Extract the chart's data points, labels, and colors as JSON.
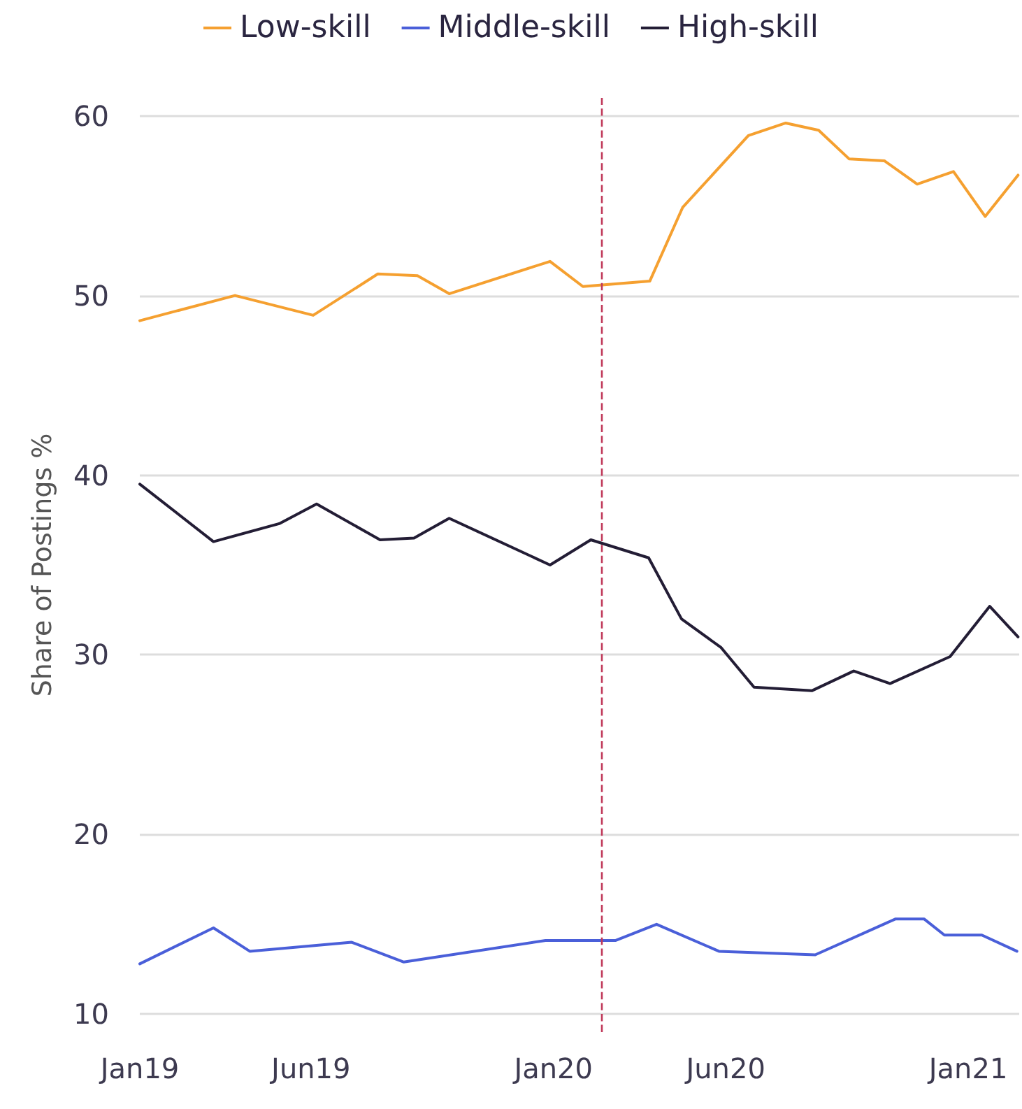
{
  "chart_data": {
    "type": "line",
    "ylabel": "Share of Postings %",
    "xlim": [
      "2019-01-01",
      "2021-02-15"
    ],
    "xticks": [
      {
        "value": "2019-01-01",
        "label": "Jan19"
      },
      {
        "value": "2019-06-01",
        "label": "Jun19"
      },
      {
        "value": "2020-01-01",
        "label": "Jan20"
      },
      {
        "value": "2020-06-01",
        "label": "Jun20"
      },
      {
        "value": "2021-01-01",
        "label": "Jan21"
      }
    ],
    "ylim": [
      9,
      61
    ],
    "yticks": [
      10,
      20,
      30,
      40,
      50,
      60
    ],
    "grid": "y",
    "legend": "top",
    "marker": "none",
    "line_style": "solid",
    "ref_lines": [
      {
        "axis": "x",
        "value": "2020-02-12",
        "color": "#c0395a",
        "line_style": "dashed"
      }
    ],
    "series": [
      {
        "name": "Low-skill",
        "color": "#f5a030",
        "x": [
          "2019-01-01",
          "2019-03-26",
          "2019-06-03",
          "2019-07-30",
          "2019-09-03",
          "2019-10-01",
          "2019-12-29",
          "2020-01-27",
          "2020-03-26",
          "2020-04-24",
          "2020-06-21",
          "2020-07-24",
          "2020-08-22",
          "2020-09-18",
          "2020-10-19",
          "2020-11-17",
          "2020-12-19",
          "2021-01-16",
          "2021-02-14"
        ],
        "values": [
          48.6,
          50.0,
          48.9,
          51.2,
          51.1,
          50.1,
          51.9,
          50.5,
          50.8,
          54.9,
          58.9,
          59.6,
          59.2,
          57.6,
          57.5,
          56.2,
          56.9,
          54.4,
          56.7
        ]
      },
      {
        "name": "Middle-skill",
        "color": "#4a5fd9",
        "x": [
          "2019-01-01",
          "2019-03-07",
          "2019-04-08",
          "2019-07-07",
          "2019-08-22",
          "2019-12-25",
          "2020-02-25",
          "2020-04-01",
          "2020-05-26",
          "2020-08-19",
          "2020-10-29",
          "2020-11-23",
          "2020-12-11",
          "2021-01-13",
          "2021-02-13"
        ],
        "values": [
          12.8,
          14.8,
          13.5,
          14.0,
          12.9,
          14.1,
          14.1,
          15.0,
          13.5,
          13.3,
          15.3,
          15.3,
          14.4,
          14.4,
          13.5
        ]
      },
      {
        "name": "High-skill",
        "color": "#231d35",
        "x": [
          "2019-01-01",
          "2019-03-07",
          "2019-05-04",
          "2019-06-06",
          "2019-08-01",
          "2019-08-31",
          "2019-10-01",
          "2019-12-29",
          "2020-02-03",
          "2020-03-25",
          "2020-04-23",
          "2020-05-28",
          "2020-06-26",
          "2020-08-16",
          "2020-09-22",
          "2020-10-24",
          "2020-12-16",
          "2021-01-20",
          "2021-02-14"
        ],
        "values": [
          39.5,
          36.3,
          37.3,
          38.4,
          36.4,
          36.5,
          37.6,
          35.0,
          36.4,
          35.4,
          32.0,
          30.4,
          28.2,
          28.0,
          29.1,
          28.4,
          29.9,
          32.7,
          31.0
        ]
      }
    ]
  }
}
